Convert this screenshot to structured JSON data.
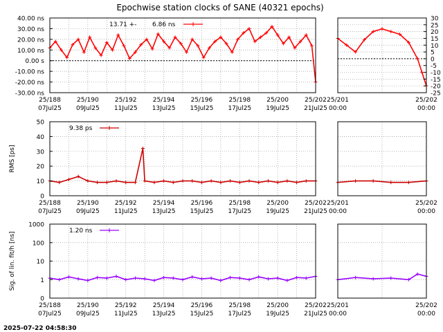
{
  "title": "Epochwise station clocks of SANE (40321 epochs)",
  "footer": "2025-07-22 04:58:30",
  "chart_data": [
    {
      "type": "scatter",
      "panel": "clock-main",
      "legend": {
        "stat": "13.71 +-",
        "value": "6.86 ns",
        "color": "#ff0000"
      },
      "ylabel": "",
      "ylim": [
        -30,
        40
      ],
      "yticks": [
        "40.00 ns",
        "30.00 ns",
        "20.00 ns",
        "10.00 ns",
        "0.00  s",
        "-10.00 ns",
        "-20.00 ns",
        "-30.00 ns"
      ],
      "ytick_values": [
        40,
        30,
        20,
        10,
        0,
        -10,
        -20,
        -30
      ],
      "xlim": [
        188,
        202
      ],
      "xticks": [
        {
          "doy": "25/188",
          "date": "07Jul25"
        },
        {
          "doy": "25/190",
          "date": "09Jul25"
        },
        {
          "doy": "25/192",
          "date": "11Jul25"
        },
        {
          "doy": "25/194",
          "date": "13Jul25"
        },
        {
          "doy": "25/196",
          "date": "15Jul25"
        },
        {
          "doy": "25/198",
          "date": "17Jul25"
        },
        {
          "doy": "25/200",
          "date": "19Jul25"
        },
        {
          "doy": "25/202",
          "date": "21Jul25"
        }
      ],
      "xtick_values": [
        188,
        190,
        192,
        194,
        196,
        198,
        200,
        202
      ],
      "grid": true,
      "zero_line": true,
      "series": [
        {
          "color": "#ff0000",
          "x": [
            188.0,
            188.3,
            188.6,
            188.9,
            189.2,
            189.5,
            189.8,
            190.1,
            190.4,
            190.7,
            191.0,
            191.3,
            191.6,
            191.9,
            192.2,
            192.5,
            192.8,
            193.1,
            193.4,
            193.7,
            194.0,
            194.3,
            194.6,
            194.9,
            195.2,
            195.5,
            195.8,
            196.1,
            196.4,
            196.7,
            197.0,
            197.3,
            197.6,
            197.9,
            198.2,
            198.5,
            198.8,
            199.1,
            199.4,
            199.7,
            200.0,
            200.3,
            200.6,
            200.9,
            201.2,
            201.5,
            201.8,
            202.0
          ],
          "y": [
            12,
            18,
            10,
            3,
            15,
            20,
            8,
            22,
            12,
            5,
            17,
            10,
            24,
            14,
            2,
            8,
            15,
            20,
            11,
            25,
            18,
            12,
            22,
            16,
            8,
            20,
            14,
            3,
            12,
            18,
            22,
            16,
            8,
            20,
            26,
            30,
            18,
            22,
            26,
            32,
            24,
            16,
            22,
            12,
            18,
            24,
            14,
            -20
          ]
        }
      ]
    },
    {
      "type": "scatter",
      "panel": "clock-zoom",
      "ylim": [
        -25,
        30
      ],
      "yticks": [
        "30",
        "25",
        "20",
        "15",
        "10",
        "5",
        "0",
        "-5",
        "-10",
        "-15",
        "-20",
        "-25"
      ],
      "ytick_values": [
        30,
        25,
        20,
        15,
        10,
        5,
        0,
        -5,
        -10,
        -15,
        -20,
        -25
      ],
      "xlim": [
        201,
        202
      ],
      "xticks": [
        {
          "doy": "25/201",
          "date": "00:00"
        },
        {
          "doy": "25/202",
          "date": "00:00"
        }
      ],
      "xtick_values": [
        201,
        202
      ],
      "grid": true,
      "series": [
        {
          "color": "#ff0000",
          "x": [
            201.0,
            201.1,
            201.2,
            201.3,
            201.4,
            201.5,
            201.6,
            201.7,
            201.8,
            201.9,
            201.95,
            202.0
          ],
          "y": [
            15,
            10,
            5,
            14,
            20,
            22,
            20,
            18,
            12,
            0,
            -10,
            -20
          ]
        }
      ]
    },
    {
      "type": "scatter",
      "panel": "rms-main",
      "legend": {
        "stat": "",
        "value": "9.38 ps",
        "color": "#cc0000"
      },
      "ylabel": "RMS [ps]",
      "ylim": [
        0,
        50
      ],
      "yticks": [
        "50",
        "40",
        "30",
        "20",
        "10",
        "0"
      ],
      "ytick_values": [
        50,
        40,
        30,
        20,
        10,
        0
      ],
      "xlim": [
        188,
        202
      ],
      "xticks": [
        {
          "doy": "25/188",
          "date": "07Jul25"
        },
        {
          "doy": "25/190",
          "date": "09Jul25"
        },
        {
          "doy": "25/192",
          "date": "11Jul25"
        },
        {
          "doy": "25/194",
          "date": "13Jul25"
        },
        {
          "doy": "25/196",
          "date": "15Jul25"
        },
        {
          "doy": "25/198",
          "date": "17Jul25"
        },
        {
          "doy": "25/200",
          "date": "19Jul25"
        },
        {
          "doy": "25/202",
          "date": "21Jul25"
        }
      ],
      "xtick_values": [
        188,
        190,
        192,
        194,
        196,
        198,
        200,
        202
      ],
      "grid": true,
      "series": [
        {
          "color": "#cc0000",
          "x": [
            188.0,
            188.5,
            189.0,
            189.5,
            190.0,
            190.5,
            191.0,
            191.5,
            192.0,
            192.5,
            192.9,
            193.0,
            193.5,
            194.0,
            194.5,
            195.0,
            195.5,
            196.0,
            196.5,
            197.0,
            197.5,
            198.0,
            198.5,
            199.0,
            199.5,
            200.0,
            200.5,
            201.0,
            201.5,
            202.0
          ],
          "y": [
            10,
            9,
            11,
            13,
            10,
            9,
            9,
            10,
            9,
            9,
            32,
            10,
            9,
            10,
            9,
            10,
            10,
            9,
            10,
            9,
            10,
            9,
            10,
            9,
            10,
            9,
            10,
            9,
            10,
            10
          ]
        }
      ]
    },
    {
      "type": "scatter",
      "panel": "rms-zoom",
      "ylim": [
        0,
        50
      ],
      "xlim": [
        201,
        202
      ],
      "xticks": [
        {
          "doy": "25/201",
          "date": "00:00"
        },
        {
          "doy": "25/202",
          "date": "00:00"
        }
      ],
      "xtick_values": [
        201,
        202
      ],
      "grid": true,
      "series": [
        {
          "color": "#cc0000",
          "x": [
            201.0,
            201.2,
            201.4,
            201.6,
            201.8,
            202.0
          ],
          "y": [
            9,
            10,
            10,
            9,
            9,
            10
          ]
        }
      ]
    },
    {
      "type": "scatter",
      "panel": "sig-main",
      "legend": {
        "stat": "",
        "value": "1.20 ns",
        "color": "#9900ff"
      },
      "ylabel": "Sig. of lin. fit/h [ns]",
      "log_scale": true,
      "ylim": [
        0.1,
        1000
      ],
      "yticks": [
        "1000",
        "100",
        "10",
        "1",
        "0"
      ],
      "ytick_values": [
        1000,
        100,
        10,
        1,
        0.1
      ],
      "xlim": [
        188,
        202
      ],
      "xticks": [
        {
          "doy": "25/188",
          "date": "07Jul25"
        },
        {
          "doy": "25/190",
          "date": "09Jul25"
        },
        {
          "doy": "25/192",
          "date": "11Jul25"
        },
        {
          "doy": "25/194",
          "date": "13Jul25"
        },
        {
          "doy": "25/196",
          "date": "15Jul25"
        },
        {
          "doy": "25/198",
          "date": "17Jul25"
        },
        {
          "doy": "25/200",
          "date": "19Jul25"
        },
        {
          "doy": "25/202",
          "date": "21Jul25"
        }
      ],
      "xtick_values": [
        188,
        190,
        192,
        194,
        196,
        198,
        200,
        202
      ],
      "grid": true,
      "series": [
        {
          "color": "#9900ff",
          "x": [
            188.0,
            188.5,
            189.0,
            189.5,
            190.0,
            190.5,
            191.0,
            191.5,
            192.0,
            192.5,
            193.0,
            193.5,
            194.0,
            194.5,
            195.0,
            195.5,
            196.0,
            196.5,
            197.0,
            197.5,
            198.0,
            198.5,
            199.0,
            199.5,
            200.0,
            200.5,
            201.0,
            201.5,
            202.0
          ],
          "y": [
            1.2,
            1.0,
            1.4,
            1.1,
            0.9,
            1.3,
            1.2,
            1.5,
            1.0,
            1.2,
            1.1,
            0.9,
            1.3,
            1.2,
            1.0,
            1.4,
            1.1,
            1.2,
            0.9,
            1.3,
            1.2,
            1.0,
            1.4,
            1.1,
            1.2,
            0.9,
            1.3,
            1.2,
            1.5
          ]
        }
      ]
    },
    {
      "type": "scatter",
      "panel": "sig-zoom",
      "log_scale": true,
      "ylim": [
        0.1,
        1000
      ],
      "xlim": [
        201,
        202
      ],
      "xticks": [
        {
          "doy": "25/201",
          "date": "00:00"
        },
        {
          "doy": "25/202",
          "date": "00:00"
        }
      ],
      "xtick_values": [
        201,
        202
      ],
      "grid": true,
      "series": [
        {
          "color": "#9900ff",
          "x": [
            201.0,
            201.2,
            201.4,
            201.6,
            201.8,
            201.9,
            202.0
          ],
          "y": [
            1.0,
            1.3,
            1.1,
            1.2,
            1.0,
            2.0,
            1.5
          ]
        }
      ]
    }
  ]
}
